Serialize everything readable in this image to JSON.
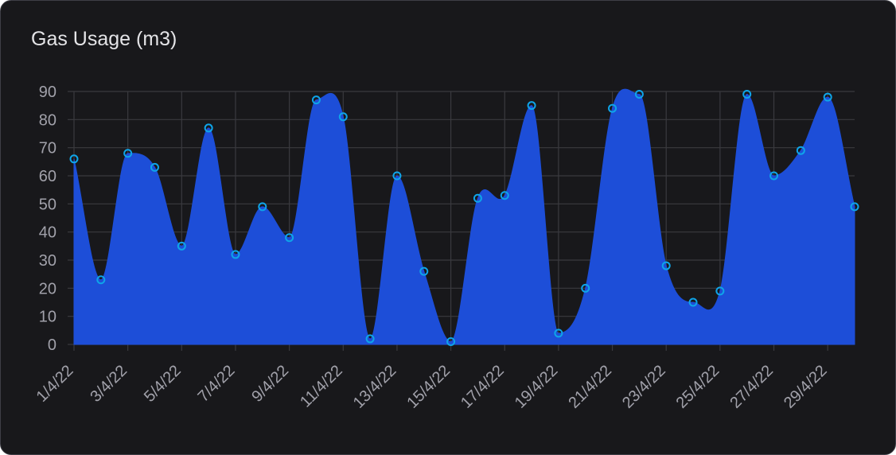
{
  "card": {
    "title": "Gas Usage (m3)"
  },
  "chart_data": {
    "type": "area",
    "title": "Gas Usage (m3)",
    "xlabel": "",
    "ylabel": "",
    "ylim": [
      0,
      90
    ],
    "y_ticks": [
      0,
      10,
      20,
      30,
      40,
      50,
      60,
      70,
      80,
      90
    ],
    "grid": true,
    "x": [
      "1/4/22",
      "2/4/22",
      "3/4/22",
      "4/4/22",
      "5/4/22",
      "6/4/22",
      "7/4/22",
      "8/4/22",
      "9/4/22",
      "10/4/22",
      "11/4/22",
      "12/4/22",
      "13/4/22",
      "14/4/22",
      "15/4/22",
      "16/4/22",
      "17/4/22",
      "18/4/22",
      "19/4/22",
      "20/4/22",
      "21/4/22",
      "22/4/22",
      "23/4/22",
      "24/4/22",
      "25/4/22",
      "26/4/22",
      "27/4/22",
      "28/4/22",
      "29/4/22",
      "30/4/22"
    ],
    "x_tick_labels": [
      "1/4/22",
      "3/4/22",
      "5/4/22",
      "7/4/22",
      "9/4/22",
      "11/4/22",
      "13/4/22",
      "15/4/22",
      "17/4/22",
      "19/4/22",
      "21/4/22",
      "23/4/22",
      "25/4/22",
      "27/4/22",
      "29/4/22"
    ],
    "values": [
      66,
      23,
      68,
      63,
      35,
      77,
      32,
      49,
      38,
      87,
      81,
      2,
      60,
      26,
      1,
      52,
      53,
      85,
      4,
      20,
      84,
      89,
      28,
      15,
      19,
      89,
      60,
      69,
      88,
      49
    ],
    "colors": {
      "fill": "#1d4ed8",
      "point": "#0ea5e9",
      "grid": "#3a3a3f",
      "background": "#18181b"
    }
  }
}
